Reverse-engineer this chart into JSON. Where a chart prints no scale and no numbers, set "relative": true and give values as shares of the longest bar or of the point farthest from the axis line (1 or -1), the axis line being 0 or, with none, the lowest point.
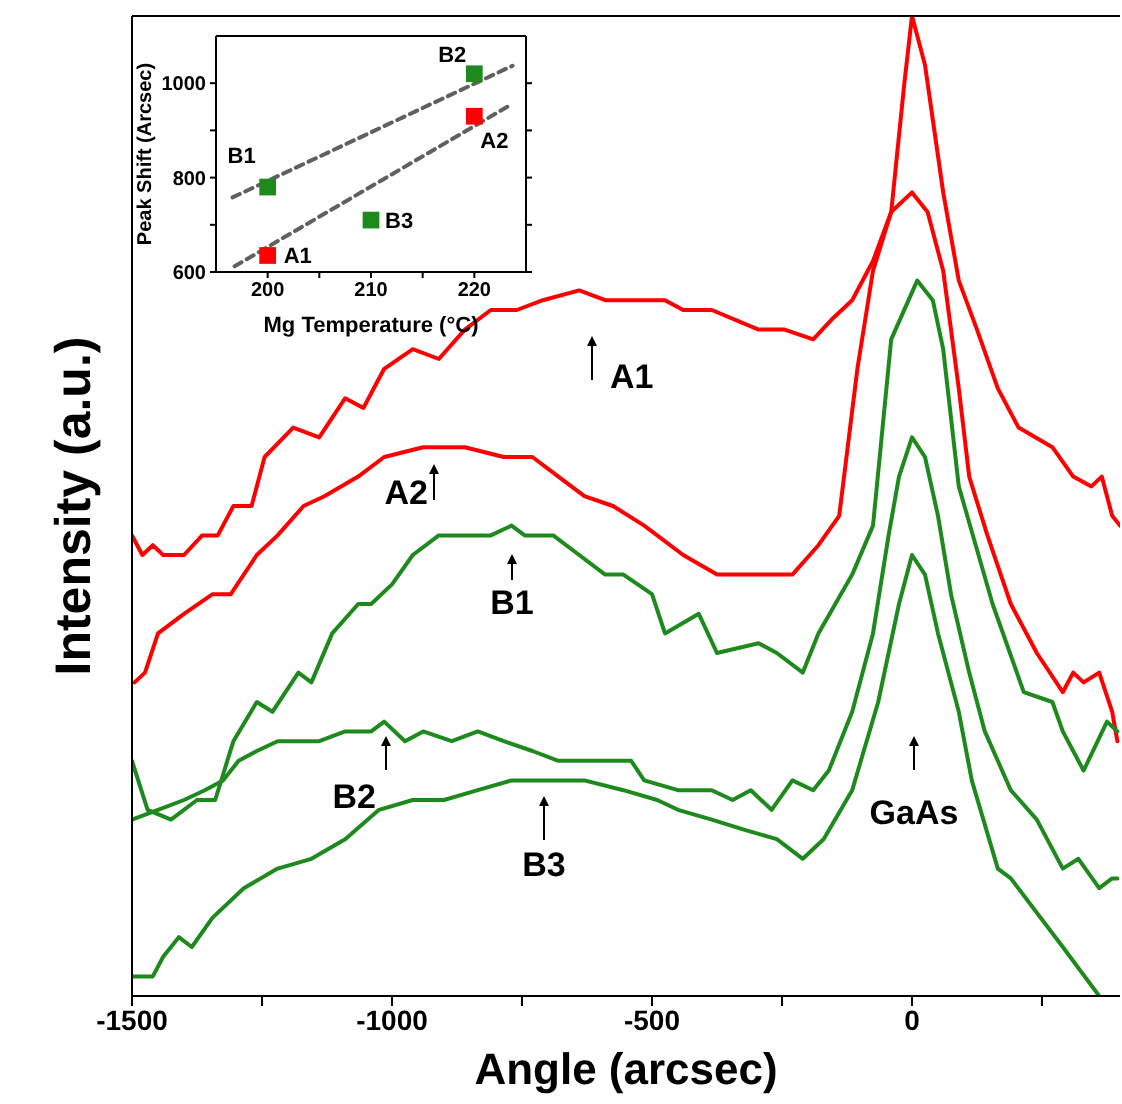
{
  "chart_data": [
    {
      "type": "line",
      "relative": true,
      "xlabel": "Angle (arcsec)",
      "ylabel": "Intensity (a.u.)",
      "xlim": [
        -1500,
        400
      ],
      "xticks": [
        -1500,
        {
          "value": -1250,
          "label": null
        },
        -1000,
        {
          "value": -750,
          "label": null
        },
        -500,
        {
          "value": -250,
          "label": null
        },
        0,
        {
          "value": 250,
          "label": null
        }
      ],
      "marker": "none",
      "line_style": "solid",
      "grid": false,
      "series": [
        {
          "color": "#ff0000",
          "x": [
            -1500,
            -1480,
            -1460,
            -1440,
            -1400,
            -1365,
            -1335,
            -1305,
            -1270,
            -1245,
            -1190,
            -1140,
            -1090,
            -1055,
            -1015,
            -960,
            -910,
            -860,
            -810,
            -760,
            -710,
            -640,
            -590,
            -555,
            -475,
            -440,
            -385,
            -295,
            -245,
            -190,
            -155,
            -115,
            -75,
            -40,
            -15,
            0,
            25,
            60,
            90,
            125,
            165,
            205,
            270,
            310,
            345,
            365,
            385,
            400
          ],
          "values": [
            0.47,
            0.45,
            0.46,
            0.45,
            0.45,
            0.47,
            0.47,
            0.5,
            0.5,
            0.55,
            0.58,
            0.57,
            0.61,
            0.6,
            0.64,
            0.66,
            0.65,
            0.68,
            0.7,
            0.7,
            0.71,
            0.72,
            0.71,
            0.71,
            0.71,
            0.7,
            0.7,
            0.68,
            0.68,
            0.67,
            0.69,
            0.71,
            0.75,
            0.8,
            0.93,
            1.0,
            0.95,
            0.82,
            0.73,
            0.68,
            0.62,
            0.58,
            0.56,
            0.53,
            0.52,
            0.53,
            0.49,
            0.48
          ]
        },
        {
          "color": "#ff0000",
          "x": [
            -1495,
            -1475,
            -1450,
            -1400,
            -1345,
            -1310,
            -1260,
            -1220,
            -1170,
            -1130,
            -1065,
            -1015,
            -940,
            -910,
            -860,
            -785,
            -730,
            -680,
            -630,
            -575,
            -515,
            -440,
            -375,
            -285,
            -230,
            -180,
            -140,
            -105,
            -75,
            -40,
            0,
            30,
            60,
            90,
            110,
            145,
            190,
            240,
            290,
            310,
            330,
            360,
            385,
            395
          ],
          "values": [
            0.32,
            0.33,
            0.37,
            0.39,
            0.41,
            0.41,
            0.45,
            0.47,
            0.5,
            0.51,
            0.53,
            0.55,
            0.56,
            0.56,
            0.56,
            0.55,
            0.55,
            0.53,
            0.51,
            0.5,
            0.48,
            0.45,
            0.43,
            0.43,
            0.43,
            0.46,
            0.49,
            0.64,
            0.74,
            0.8,
            0.82,
            0.8,
            0.74,
            0.62,
            0.53,
            0.47,
            0.4,
            0.35,
            0.31,
            0.33,
            0.32,
            0.33,
            0.29,
            0.26
          ]
        },
        {
          "color": "#1e8a1e",
          "x": [
            -1500,
            -1470,
            -1425,
            -1375,
            -1340,
            -1305,
            -1260,
            -1230,
            -1180,
            -1155,
            -1115,
            -1065,
            -1040,
            -1000,
            -960,
            -910,
            -860,
            -810,
            -770,
            -745,
            -690,
            -640,
            -590,
            -555,
            -500,
            -475,
            -410,
            -375,
            -295,
            -260,
            -210,
            -180,
            -115,
            -75,
            -40,
            10,
            40,
            60,
            90,
            155,
            215,
            270,
            290,
            330,
            375,
            395
          ],
          "values": [
            0.24,
            0.19,
            0.18,
            0.2,
            0.2,
            0.26,
            0.3,
            0.29,
            0.33,
            0.32,
            0.37,
            0.4,
            0.4,
            0.42,
            0.45,
            0.47,
            0.47,
            0.47,
            0.48,
            0.47,
            0.47,
            0.45,
            0.43,
            0.43,
            0.41,
            0.37,
            0.39,
            0.35,
            0.36,
            0.35,
            0.33,
            0.37,
            0.43,
            0.48,
            0.67,
            0.73,
            0.71,
            0.66,
            0.52,
            0.4,
            0.31,
            0.3,
            0.27,
            0.23,
            0.28,
            0.27
          ]
        },
        {
          "color": "#1e8a1e",
          "x": [
            -1500,
            -1450,
            -1400,
            -1360,
            -1325,
            -1295,
            -1260,
            -1220,
            -1140,
            -1090,
            -1040,
            -1015,
            -975,
            -940,
            -885,
            -835,
            -785,
            -730,
            -680,
            -630,
            -575,
            -540,
            -515,
            -450,
            -385,
            -345,
            -310,
            -270,
            -230,
            -190,
            -160,
            -115,
            -75,
            -45,
            -25,
            0,
            25,
            50,
            75,
            110,
            140,
            165,
            190,
            240,
            290,
            320,
            360,
            385,
            395
          ],
          "values": [
            0.18,
            0.19,
            0.2,
            0.21,
            0.22,
            0.24,
            0.25,
            0.26,
            0.26,
            0.27,
            0.27,
            0.28,
            0.26,
            0.27,
            0.26,
            0.27,
            0.26,
            0.25,
            0.24,
            0.24,
            0.24,
            0.24,
            0.22,
            0.21,
            0.21,
            0.2,
            0.21,
            0.19,
            0.22,
            0.21,
            0.23,
            0.29,
            0.37,
            0.47,
            0.53,
            0.57,
            0.55,
            0.49,
            0.41,
            0.33,
            0.27,
            0.24,
            0.21,
            0.18,
            0.13,
            0.14,
            0.11,
            0.12,
            0.12
          ]
        },
        {
          "color": "#1e8a1e",
          "x": [
            -1500,
            -1460,
            -1440,
            -1410,
            -1385,
            -1345,
            -1285,
            -1220,
            -1155,
            -1090,
            -1025,
            -960,
            -900,
            -835,
            -770,
            -690,
            -630,
            -555,
            -490,
            -450,
            -385,
            -325,
            -260,
            -210,
            -170,
            -115,
            -65,
            -25,
            0,
            25,
            50,
            90,
            115,
            165,
            190,
            290,
            360
          ],
          "values": [
            0.02,
            0.02,
            0.04,
            0.06,
            0.05,
            0.08,
            0.11,
            0.13,
            0.14,
            0.16,
            0.19,
            0.2,
            0.2,
            0.21,
            0.22,
            0.22,
            0.22,
            0.21,
            0.2,
            0.19,
            0.18,
            0.17,
            0.16,
            0.14,
            0.16,
            0.21,
            0.3,
            0.4,
            0.45,
            0.43,
            0.37,
            0.29,
            0.22,
            0.13,
            0.12,
            0.05,
            0.0
          ]
        }
      ],
      "annotations": [
        "A1",
        "A2",
        "B1",
        "B2",
        "B3",
        "GaAs"
      ]
    },
    {
      "type": "scatter",
      "xlabel": "Mg Temperature (°C)",
      "ylabel": "Peak Shift (Arcsec)",
      "xlim": [
        195,
        225
      ],
      "xticks": [
        200,
        {
          "value": 205,
          "label": null
        },
        210,
        {
          "value": 215,
          "label": null
        },
        220
      ],
      "ylim": [
        600,
        1100
      ],
      "yticks": [
        600,
        {
          "value": 700,
          "label": null
        },
        800,
        {
          "value": 900,
          "label": null
        },
        1000
      ],
      "marker": "square",
      "grid": false,
      "series": [
        {
          "color": "#ff0000",
          "x": [
            200,
            220
          ],
          "values": [
            635,
            930
          ]
        },
        {
          "color": "#1e8a1e",
          "x": [
            200,
            220
          ],
          "values": [
            780,
            1020
          ]
        },
        {
          "color": "#1e8a1e",
          "x": [
            210
          ],
          "values": [
            710
          ]
        },
        {
          "type": "line",
          "color": "#606060",
          "marker": "none",
          "line_style": "dashed",
          "x": [
            196.6,
            223.7
          ],
          "values": [
            758,
            1037
          ]
        },
        {
          "type": "line",
          "color": "#606060",
          "marker": "none",
          "line_style": "dashed",
          "x": [
            196.8,
            223.5
          ],
          "values": [
            612,
            954
          ]
        }
      ],
      "annotations": [
        {
          "text": "A1",
          "x": 200,
          "y": 635
        },
        {
          "text": "A2",
          "x": 220,
          "y": 930
        },
        {
          "text": "B1",
          "x": 200,
          "y": 780
        },
        {
          "text": "B2",
          "x": 220,
          "y": 1020
        },
        {
          "text": "B3",
          "x": 210,
          "y": 710
        }
      ]
    }
  ]
}
